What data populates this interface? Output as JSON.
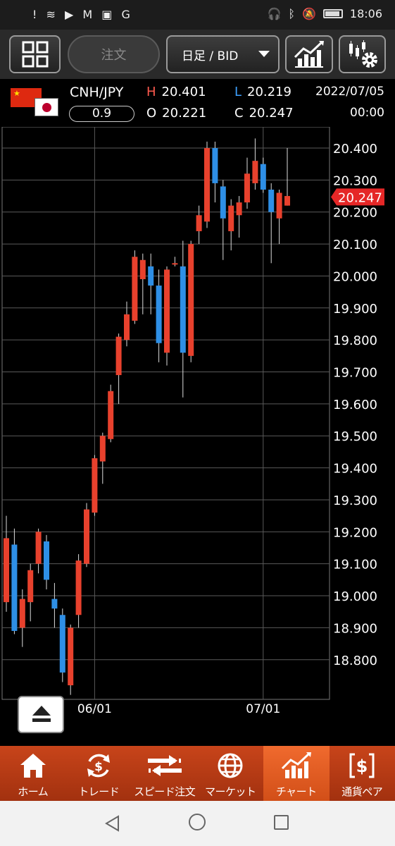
{
  "status_bar": {
    "left_icons": "!  ≋  ▶  M  ▣  G",
    "time": "18:06"
  },
  "toolbar": {
    "order_label": "注文",
    "period_label": "日足 / BID"
  },
  "info": {
    "pair": "CNH/JPY",
    "spread": "0.9",
    "high_key": "H",
    "high": "20.401",
    "low_key": "L",
    "low": "20.219",
    "open_key": "O",
    "open": "20.221",
    "close_key": "C",
    "close": "20.247",
    "date": "2022/07/05",
    "time": "00:00"
  },
  "chart_data": {
    "type": "candlestick",
    "y_ticks": [
      "20.400",
      "20.300",
      "20.200",
      "20.100",
      "20.000",
      "19.900",
      "19.800",
      "19.700",
      "19.600",
      "19.500",
      "19.400",
      "19.300",
      "19.200",
      "19.100",
      "19.000",
      "18.900",
      "18.800"
    ],
    "x_ticks": [
      {
        "label": "06/01",
        "index": 11
      },
      {
        "label": "07/01",
        "index": 32
      }
    ],
    "current_price": "20.247",
    "colors": {
      "up": "#e8412d",
      "down": "#2e8fe6",
      "price_tag": "#e52727"
    },
    "candles": [
      {
        "o": 18.98,
        "h": 19.25,
        "l": 18.95,
        "c": 19.18
      },
      {
        "o": 19.16,
        "h": 19.21,
        "l": 18.88,
        "c": 18.89
      },
      {
        "o": 18.9,
        "h": 19.02,
        "l": 18.84,
        "c": 18.99
      },
      {
        "o": 18.98,
        "h": 19.1,
        "l": 18.92,
        "c": 19.08
      },
      {
        "o": 19.1,
        "h": 19.21,
        "l": 19.07,
        "c": 19.2
      },
      {
        "o": 19.17,
        "h": 19.19,
        "l": 19.02,
        "c": 19.05
      },
      {
        "o": 18.99,
        "h": 19.04,
        "l": 18.9,
        "c": 18.96
      },
      {
        "o": 18.94,
        "h": 18.96,
        "l": 18.73,
        "c": 18.76
      },
      {
        "o": 18.72,
        "h": 18.91,
        "l": 18.69,
        "c": 18.9
      },
      {
        "o": 18.94,
        "h": 19.13,
        "l": 18.9,
        "c": 19.11
      },
      {
        "o": 19.1,
        "h": 19.29,
        "l": 19.09,
        "c": 19.27
      },
      {
        "o": 19.26,
        "h": 19.44,
        "l": 19.25,
        "c": 19.43
      },
      {
        "o": 19.42,
        "h": 19.51,
        "l": 19.35,
        "c": 19.5
      },
      {
        "o": 19.49,
        "h": 19.66,
        "l": 19.48,
        "c": 19.64
      },
      {
        "o": 19.69,
        "h": 19.82,
        "l": 19.6,
        "c": 19.81
      },
      {
        "o": 19.8,
        "h": 19.92,
        "l": 19.78,
        "c": 19.88
      },
      {
        "o": 19.86,
        "h": 20.08,
        "l": 19.85,
        "c": 20.06
      },
      {
        "o": 19.99,
        "h": 20.07,
        "l": 19.88,
        "c": 20.05
      },
      {
        "o": 20.03,
        "h": 20.07,
        "l": 19.88,
        "c": 19.97
      },
      {
        "o": 19.97,
        "h": 20.02,
        "l": 19.73,
        "c": 19.79
      },
      {
        "o": 19.76,
        "h": 20.03,
        "l": 19.72,
        "c": 20.02
      },
      {
        "o": 20.04,
        "h": 20.06,
        "l": 20.03,
        "c": 20.04
      },
      {
        "o": 20.03,
        "h": 20.11,
        "l": 19.62,
        "c": 19.76
      },
      {
        "o": 19.75,
        "h": 20.11,
        "l": 19.73,
        "c": 20.1
      },
      {
        "o": 20.14,
        "h": 20.22,
        "l": 20.1,
        "c": 20.19
      },
      {
        "o": 20.17,
        "h": 20.42,
        "l": 20.15,
        "c": 20.4
      },
      {
        "o": 20.4,
        "h": 20.42,
        "l": 20.23,
        "c": 20.29
      },
      {
        "o": 20.28,
        "h": 20.3,
        "l": 20.05,
        "c": 20.18
      },
      {
        "o": 20.14,
        "h": 20.24,
        "l": 20.08,
        "c": 20.22
      },
      {
        "o": 20.19,
        "h": 20.25,
        "l": 20.12,
        "c": 20.23
      },
      {
        "o": 20.23,
        "h": 20.37,
        "l": 20.21,
        "c": 20.32
      },
      {
        "o": 20.29,
        "h": 20.43,
        "l": 20.27,
        "c": 20.36
      },
      {
        "o": 20.35,
        "h": 20.37,
        "l": 20.26,
        "c": 20.27
      },
      {
        "o": 20.27,
        "h": 20.29,
        "l": 20.04,
        "c": 20.2
      },
      {
        "o": 20.18,
        "h": 20.27,
        "l": 20.1,
        "c": 20.26
      },
      {
        "o": 20.22,
        "h": 20.4,
        "l": 20.22,
        "c": 20.25
      }
    ]
  },
  "bottom_nav": [
    {
      "label": "ホーム",
      "icon": "home-icon",
      "active": false
    },
    {
      "label": "トレード",
      "icon": "trade-icon",
      "active": false
    },
    {
      "label": "スピード注文",
      "icon": "speed-order-icon",
      "active": false
    },
    {
      "label": "マーケット",
      "icon": "globe-icon",
      "active": false
    },
    {
      "label": "チャート",
      "icon": "chart-icon",
      "active": true
    },
    {
      "label": "通貨ペア",
      "icon": "currency-pair-icon",
      "active": false
    }
  ]
}
